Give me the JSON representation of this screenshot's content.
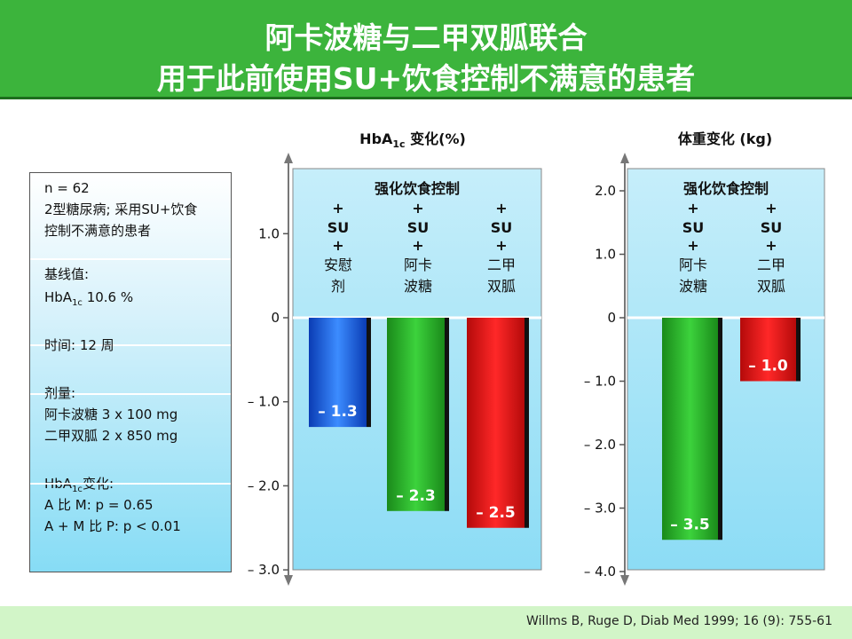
{
  "title": {
    "line1": "阿卡波糖与二甲双胍联合",
    "line2": "用于此前使用SU+饮食控制不满意的患者"
  },
  "info_box": {
    "n": "n = 62",
    "patients_line1": "2型糖尿病; 采用SU+饮食",
    "patients_line2": "控制不满意的患者",
    "baseline_label": "基线值:",
    "baseline_prefix": "HbA",
    "baseline_sub": "1c",
    "baseline_value": " 10.6 %",
    "duration": "时间: 12 周",
    "dose_label": "剂量:",
    "dose_acarbose": "阿卡波糖 3 x 100 mg",
    "dose_metformin": "二甲双胍 2 x 850 mg",
    "change_prefix": "HbA",
    "change_sub": "1c",
    "change_suffix": "变化:",
    "stat1": "A 比 M: p = 0.65",
    "stat2": "A + M 比 P: p < 0.01"
  },
  "footer": {
    "citation": "Willms B, Ruge D, Diab Med 1999; 16 (9): 755-61"
  },
  "colors": {
    "title_bg": "#3cb43c",
    "placebo": "#1e64e6",
    "acarbose": "#2eb82e",
    "metformin": "#e61414",
    "panel": "#8cdcf5"
  },
  "chart_data": [
    {
      "type": "bar",
      "title_prefix": "HbA",
      "title_sub": "1c",
      "title_suffix": " 变化(%)",
      "panel_header": "强化饮食控制",
      "ylim": [
        -3.0,
        1.8
      ],
      "yticks": [
        1.0,
        0,
        -1.0,
        -2.0,
        -3.0
      ],
      "ytick_labels": [
        "1.0",
        "0",
        "– 1.0",
        "– 2.0",
        "– 3.0"
      ],
      "categories": [
        [
          "+",
          "SU",
          "+",
          "安慰",
          "剂"
        ],
        [
          "+",
          "SU",
          "+",
          "阿卡",
          "波糖"
        ],
        [
          "+",
          "SU",
          "+",
          "二甲",
          "双胍"
        ]
      ],
      "values": [
        -1.3,
        -2.3,
        -2.5
      ],
      "value_labels": [
        "– 1.3",
        "– 2.3",
        "– 2.5"
      ],
      "bar_colors": [
        "#1e64e6",
        "#2eb82e",
        "#e61414"
      ]
    },
    {
      "type": "bar",
      "title": "体重变化 (kg)",
      "panel_header": "强化饮食控制",
      "ylim": [
        -4.0,
        2.4
      ],
      "yticks": [
        2.0,
        1.0,
        0,
        -1.0,
        -2.0,
        -3.0,
        -4.0
      ],
      "ytick_labels": [
        "2.0",
        "1.0",
        "0",
        "– 1.0",
        "– 2.0",
        "– 3.0",
        "– 4.0"
      ],
      "categories": [
        [
          "+",
          "SU",
          "+",
          "阿卡",
          "波糖"
        ],
        [
          "+",
          "SU",
          "+",
          "二甲",
          "双胍"
        ]
      ],
      "values": [
        -3.5,
        -1.0
      ],
      "value_labels": [
        "– 3.5",
        "– 1.0"
      ],
      "bar_colors": [
        "#2eb82e",
        "#e61414"
      ]
    }
  ]
}
